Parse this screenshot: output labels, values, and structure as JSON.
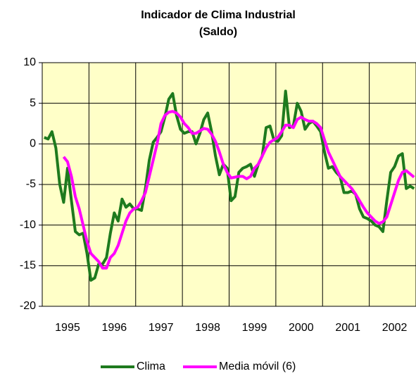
{
  "chart_data": {
    "type": "line",
    "title": "Indicador de Clima Industrial",
    "subtitle": "(Saldo)",
    "categories": [
      null,
      null,
      null,
      null,
      null,
      null,
      "1995",
      null,
      null,
      null,
      null,
      null,
      null,
      null,
      null,
      null,
      null,
      null,
      "1996",
      null,
      null,
      null,
      null,
      null,
      null,
      null,
      null,
      null,
      null,
      null,
      "1997",
      null,
      null,
      null,
      null,
      null,
      null,
      null,
      null,
      null,
      null,
      null,
      "1998",
      null,
      null,
      null,
      null,
      null,
      null,
      null,
      null,
      null,
      null,
      null,
      "1999",
      null,
      null,
      null,
      null,
      null,
      null,
      null,
      null,
      null,
      null,
      null,
      "2000",
      null,
      null,
      null,
      null,
      null,
      null,
      null,
      null,
      null,
      null,
      null,
      "2001",
      null,
      null,
      null,
      null,
      null,
      null,
      null,
      null,
      null,
      null,
      null,
      "2002",
      null,
      null,
      null,
      null,
      null
    ],
    "series": [
      {
        "name": "Clima",
        "color": "#1e7a1e",
        "values": [
          0.8,
          0.6,
          1.5,
          -0.5,
          -5,
          -7.2,
          -3,
          -7,
          -10.8,
          -11.2,
          -11,
          -13.5,
          -16.8,
          -16.5,
          -14.8,
          -14.8,
          -14,
          -11,
          -8.5,
          -9.5,
          -6.8,
          -7.8,
          -7.4,
          -8,
          -8,
          -8.2,
          -5.5,
          -2,
          0.2,
          0.8,
          1.5,
          3.3,
          5.5,
          6.2,
          3.5,
          1.8,
          1.3,
          1.5,
          1.5,
          0,
          1.3,
          3,
          3.8,
          1.5,
          -1.5,
          -3.8,
          -2.5,
          -3,
          -7,
          -6.5,
          -3.5,
          -3,
          -2.8,
          -2.5,
          -4,
          -2.5,
          -1.5,
          2,
          2.2,
          0.5,
          0.3,
          1,
          6.5,
          2,
          2.2,
          5,
          4,
          1.8,
          2.5,
          2.8,
          2.2,
          1.5,
          -1,
          -3,
          -2.8,
          -3.5,
          -4,
          -6,
          -6,
          -5.8,
          -6.2,
          -8,
          -9,
          -9.2,
          -9.5,
          -10,
          -10.2,
          -10.8,
          -7,
          -3.5,
          -2.8,
          -1.5,
          -1.2,
          -5.5,
          -5.2,
          -5.5
        ]
      },
      {
        "name": "Media móvil (6)",
        "color": "#ff00ff",
        "values": [
          null,
          null,
          null,
          null,
          null,
          -1.6,
          -2.2,
          -4,
          -6.5,
          -8,
          -10,
          -12,
          -13.5,
          -14,
          -14.5,
          -15.3,
          -15.3,
          -14,
          -13.5,
          -12.5,
          -11,
          -9.5,
          -8.5,
          -8,
          -7.8,
          -7,
          -6,
          -4,
          -2,
          0,
          2.5,
          3.5,
          3.9,
          4,
          3.8,
          3.3,
          2.5,
          2,
          1.3,
          1.3,
          1.6,
          1.9,
          1.8,
          1.2,
          0.3,
          -1,
          -2.5,
          -3.5,
          -4.2,
          -4.1,
          -4,
          -4,
          -4.3,
          -4,
          -3,
          -2.5,
          -1.5,
          -0.5,
          0.2,
          0.5,
          0.8,
          1.5,
          2.3,
          2.3,
          2,
          3,
          3.3,
          3,
          2.8,
          2.8,
          2.5,
          2,
          0.5,
          -1,
          -2,
          -3,
          -4,
          -4.5,
          -5,
          -5.5,
          -6.2,
          -7,
          -7.8,
          -8.5,
          -9,
          -9.5,
          -9.8,
          -9.6,
          -9,
          -7.5,
          -6,
          -4.5,
          -3.5,
          -3.3,
          -3.7,
          -4.1
        ]
      }
    ],
    "ylim": [
      -20,
      10
    ],
    "yticks": [
      -20,
      -15,
      -10,
      -5,
      0,
      5,
      10
    ],
    "grid": true,
    "legend": "bottom"
  }
}
